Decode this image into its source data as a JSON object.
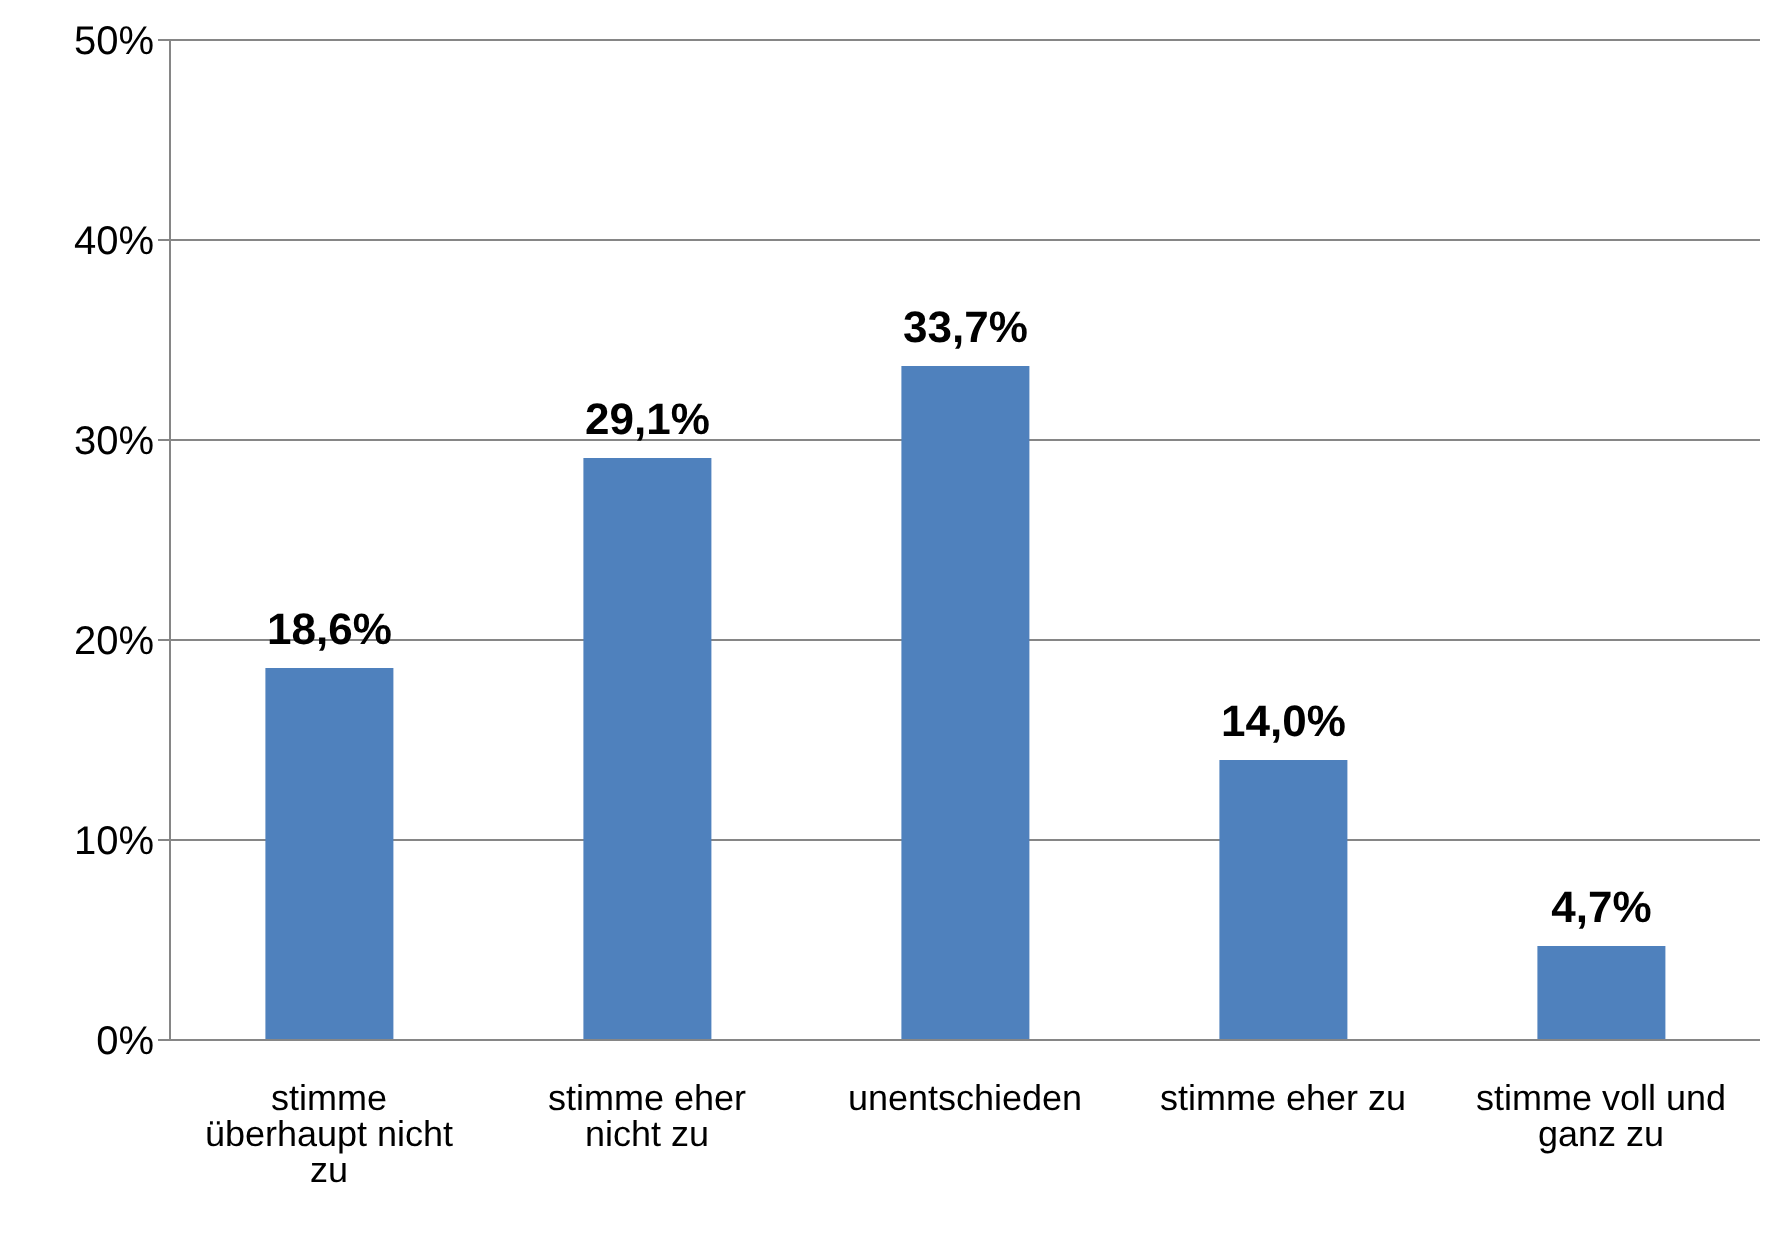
{
  "chart_data": {
    "type": "bar",
    "categories": [
      "stimme überhaupt nicht zu",
      "stimme eher nicht zu",
      "unentschieden",
      "stimme eher zu",
      "stimme voll und ganz zu"
    ],
    "values": [
      18.6,
      29.1,
      33.7,
      14.0,
      4.7
    ],
    "value_labels": [
      "18,6%",
      "29,1%",
      "33,7%",
      "14,0%",
      "4,7%"
    ],
    "color": "#4f81bd",
    "ylim": [
      0,
      50
    ],
    "yticks": [
      {
        "value": 0,
        "label": "0%"
      },
      {
        "value": 10,
        "label": "10%"
      },
      {
        "value": 20,
        "label": "20%"
      },
      {
        "value": 30,
        "label": "30%"
      },
      {
        "value": 40,
        "label": "40%"
      },
      {
        "value": 50,
        "label": "50%"
      }
    ],
    "grid": "y"
  }
}
